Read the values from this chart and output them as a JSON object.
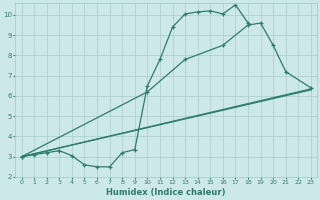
{
  "bg_color": "#cce8e8",
  "grid_color": "#aacccc",
  "line_color": "#2e7d6b",
  "xlabel": "Humidex (Indice chaleur)",
  "xlim": [
    -0.5,
    23.5
  ],
  "ylim": [
    2.0,
    10.6
  ],
  "yticks": [
    2,
    3,
    4,
    5,
    6,
    7,
    8,
    9,
    10
  ],
  "xticks": [
    0,
    1,
    2,
    3,
    4,
    5,
    6,
    7,
    8,
    9,
    10,
    11,
    12,
    13,
    14,
    15,
    16,
    17,
    18,
    19,
    20,
    21,
    22,
    23
  ],
  "curve1_x": [
    0,
    1,
    2,
    3,
    4,
    5,
    6,
    7,
    8,
    9,
    10,
    11,
    12,
    13,
    14,
    15,
    16,
    17,
    18
  ],
  "curve1_y": [
    3.0,
    3.1,
    3.2,
    3.3,
    3.05,
    2.6,
    2.5,
    2.5,
    3.2,
    3.35,
    6.5,
    7.8,
    9.4,
    10.05,
    10.15,
    10.2,
    10.05,
    10.5,
    9.6
  ],
  "line2_x": [
    0,
    23
  ],
  "line2_y": [
    3.0,
    6.3
  ],
  "line3_x": [
    0,
    23
  ],
  "line3_y": [
    3.0,
    6.35
  ],
  "curve4_x": [
    0,
    10,
    13,
    16,
    18,
    19,
    20,
    21,
    23
  ],
  "curve4_y": [
    3.0,
    6.2,
    7.8,
    8.5,
    9.5,
    9.6,
    8.5,
    7.2,
    6.4
  ]
}
